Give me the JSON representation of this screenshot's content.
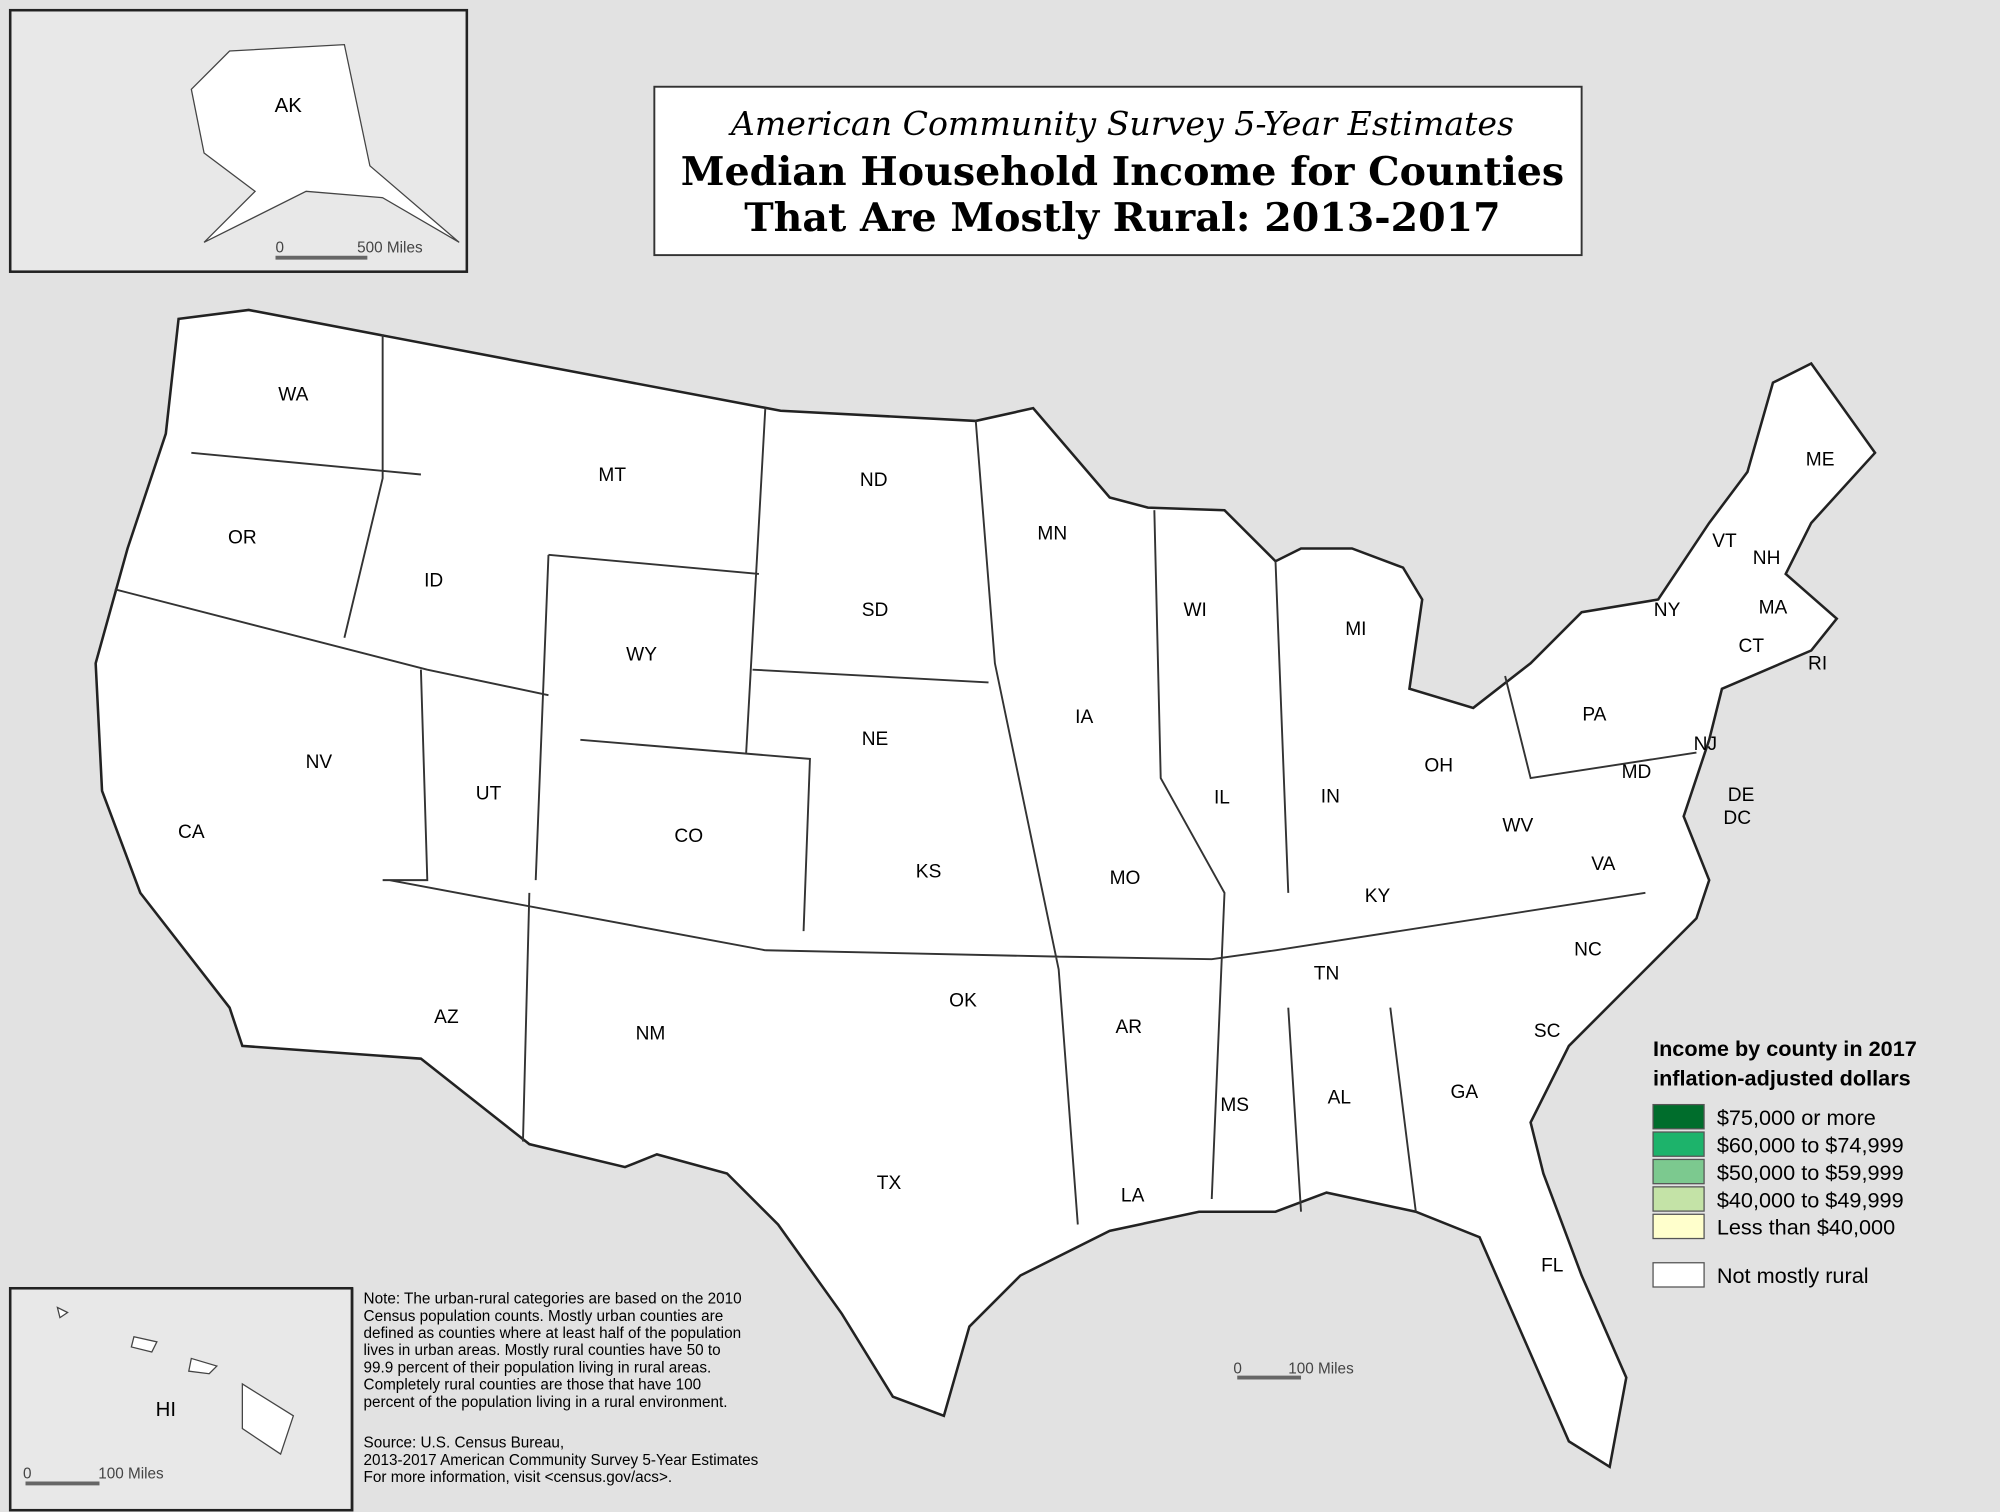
{
  "header": {
    "subtitle": "American Community Survey 5-Year Estimates",
    "title_lines": [
      "Median Household Income for Counties",
      "That Are Mostly Rural: 2013-2017"
    ]
  },
  "state_labels": [
    "WA",
    "OR",
    "CA",
    "ID",
    "NV",
    "MT",
    "WY",
    "UT",
    "AZ",
    "CO",
    "NM",
    "ND",
    "SD",
    "NE",
    "KS",
    "OK",
    "TX",
    "MN",
    "IA",
    "MO",
    "AR",
    "LA",
    "WI",
    "IL",
    "MI",
    "IN",
    "OH",
    "KY",
    "TN",
    "MS",
    "AL",
    "GA",
    "FL",
    "SC",
    "NC",
    "VA",
    "WV",
    "PA",
    "NY",
    "VT",
    "NH",
    "ME",
    "MA",
    "CT",
    "RI",
    "NJ",
    "DE",
    "MD",
    "DC"
  ],
  "insets": {
    "alaska": {
      "label": "AK",
      "scale_zero": "0",
      "scale_label": "500 Miles"
    },
    "hawaii": {
      "label": "HI",
      "scale_zero": "0",
      "scale_label": "100 Miles"
    }
  },
  "main_scale": {
    "scale_zero": "0",
    "scale_label": "100 Miles"
  },
  "legend": {
    "title_lines": [
      "Income by county in 2017",
      "inflation-adjusted dollars"
    ],
    "items": [
      {
        "label": "$75,000 or more",
        "color": "#006d2c"
      },
      {
        "label": "$60,000 to $74,999",
        "color": "#1db36b"
      },
      {
        "label": "$50,000 to $59,999",
        "color": "#7cc98f"
      },
      {
        "label": "$40,000 to $49,999",
        "color": "#c4e3a7"
      },
      {
        "label": "Less than $40,000",
        "color": "#ffffcc"
      }
    ],
    "not_rural": {
      "label": "Not mostly rural",
      "color": "#ffffff"
    }
  },
  "note_lines": [
    "Note: The urban-rural categories are based on the 2010",
    "Census population counts. Mostly urban counties are",
    "defined as counties where at least half of the population",
    "lives in urban areas. Mostly rural counties have 50 to",
    "99.9 percent of their population living in rural areas.",
    "Completely rural counties are those that have 100",
    "percent of the population living in a rural environment."
  ],
  "source_lines": [
    "Source: U.S. Census Bureau,",
    "2013-2017 American Community Survey 5-Year Estimates",
    "For more information, visit <census.gov/acs>."
  ]
}
